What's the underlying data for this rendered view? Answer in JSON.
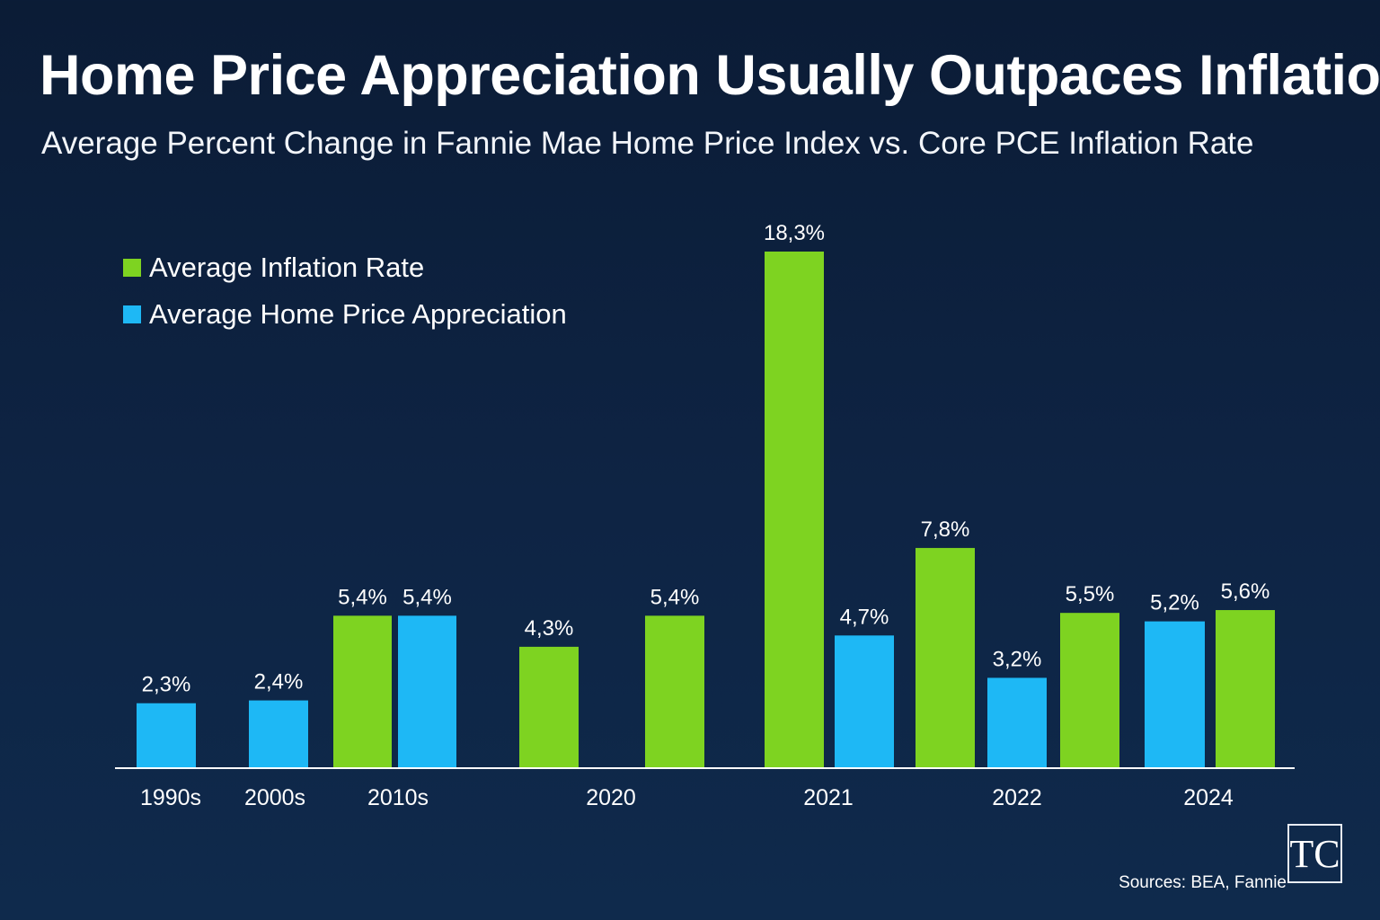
{
  "header": {
    "title": "Home Price Appreciation Usually Outpaces Inflation",
    "subtitle": "Average Percent Change in Fannie Mae Home Price Index vs. Core PCE Inflation Rate"
  },
  "footer": {
    "source": "Sources: BEA, Fannie",
    "logo_text": "TC"
  },
  "colors": {
    "inflation": "#7ed321",
    "home_price": "#1eb8f5",
    "axis": "#ffffff"
  },
  "chart_data": {
    "type": "bar",
    "title": "Home Price Appreciation Usually Outpaces Inflation",
    "subtitle": "Average Percent Change in Fannie Mae Home Price Index vs. Core PCE Inflation Rate",
    "categories": [
      "1990s",
      "2000s",
      "2010s",
      "2020",
      "2021",
      "2022",
      "2024"
    ],
    "legend": [
      "Average Inflation Rate",
      "Average Home Price Appreciation"
    ],
    "legend_position": "top-left",
    "grid": false,
    "value_unit": "%",
    "ylim": [
      0,
      18.3
    ],
    "bars": [
      {
        "category": "1990s",
        "series": "Average Home Price Appreciation",
        "value": 2.3,
        "label": "2,3%"
      },
      {
        "category": "2000s",
        "series": "Average Home Price Appreciation",
        "value": 2.4,
        "label": "2,4%"
      },
      {
        "category": "2010s",
        "series": "Average Inflation Rate",
        "value": 5.4,
        "label": "5,4%"
      },
      {
        "category": "2010s",
        "series": "Average Home Price Appreciation",
        "value": 5.4,
        "label": "5,4%"
      },
      {
        "category": "2020",
        "series": "Average Inflation Rate",
        "value": 4.3,
        "label": "4,3%"
      },
      {
        "category": "2020",
        "series": "Average Inflation Rate",
        "value": 5.4,
        "label": "5,4%"
      },
      {
        "category": "2021",
        "series": "Average Inflation Rate",
        "value": 18.3,
        "label": "18,3%"
      },
      {
        "category": "2021",
        "series": "Average Home Price Appreciation",
        "value": 4.7,
        "label": "4,7%"
      },
      {
        "category": "2022",
        "series": "Average Inflation Rate",
        "value": 7.8,
        "label": "7,8%"
      },
      {
        "category": "2022",
        "series": "Average Home Price Appreciation",
        "value": 3.2,
        "label": "3,2%"
      },
      {
        "category": "2022",
        "series": "Average Inflation Rate",
        "value": 5.5,
        "label": "5,5%"
      },
      {
        "category": "2024",
        "series": "Average Home Price Appreciation",
        "value": 5.2,
        "label": "5,2%"
      },
      {
        "category": "2024",
        "series": "Average Inflation Rate",
        "value": 5.6,
        "label": "5,6%"
      }
    ]
  }
}
